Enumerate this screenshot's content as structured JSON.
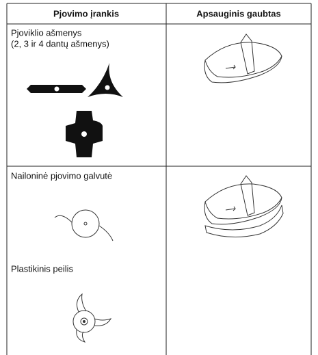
{
  "table": {
    "header": [
      "Pjovimo įrankis",
      "Apsauginis gaubtas"
    ],
    "rows": [
      {
        "tool": [
          "Pjoviklio ašmenys",
          "(2, 3 ir 4 dantų ašmenys)"
        ]
      },
      {
        "tool": [
          "Nailoninė pjovimo galvutė",
          "Plastikinis peilis"
        ]
      }
    ]
  }
}
